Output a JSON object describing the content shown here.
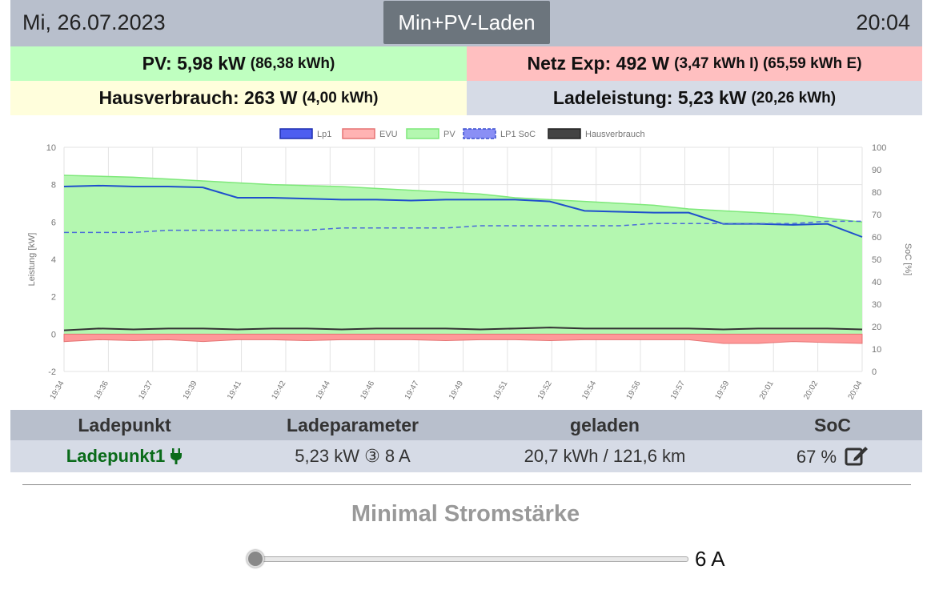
{
  "header": {
    "date": "Mi, 26.07.2023",
    "time": "20:04",
    "mode": "Min+PV-Laden"
  },
  "summary": {
    "pv": "PV: 5,98 kW",
    "pv_energy": "(86,38 kWh)",
    "grid": "Netz Exp: 492 W",
    "grid_energy": "(3,47 kWh I) (65,59 kWh E)",
    "house": "Hausverbrauch: 263 W",
    "house_energy": "(4,00 kWh)",
    "charge": "Ladeleistung: 5,23 kW",
    "charge_energy": "(20,26 kWh)"
  },
  "chart_data": {
    "type": "line",
    "ylabel": "Leistung [kW]",
    "y2label": "SoC [%]",
    "ylim": [
      -2,
      10
    ],
    "y2lim": [
      0,
      100
    ],
    "yticks": [
      "10",
      "8",
      "6",
      "4",
      "2",
      "0",
      "-2"
    ],
    "y2ticks": [
      "100",
      "90",
      "80",
      "70",
      "60",
      "50",
      "40",
      "30",
      "20",
      "10",
      "0"
    ],
    "xticks": [
      "19:34",
      "19:36",
      "19:37",
      "19:39",
      "19:41",
      "19:42",
      "19:44",
      "19:46",
      "19:47",
      "19:49",
      "19:51",
      "19:52",
      "19:54",
      "19:56",
      "19:57",
      "19:59",
      "20:01",
      "20:02",
      "20:04"
    ],
    "legend": [
      "Lp1",
      "EVU",
      "PV",
      "LP1 SoC",
      "Hausverbrauch"
    ],
    "legend_position": "top",
    "colors": {
      "lp1": "#1f4fcc",
      "evu": "#ff9999",
      "pv": "#b4f7b0",
      "pv_line": "#7ee87a",
      "soc": "#4a6bd9",
      "house": "#333333"
    },
    "series": [
      {
        "name": "PV",
        "values": [
          8.5,
          8.45,
          8.4,
          8.3,
          8.2,
          8.1,
          8.0,
          7.95,
          7.9,
          7.8,
          7.7,
          7.6,
          7.5,
          7.3,
          7.2,
          7.1,
          7.0,
          6.9,
          6.7,
          6.6,
          6.5,
          6.4,
          6.2,
          6.0
        ]
      },
      {
        "name": "Lp1",
        "values": [
          7.9,
          7.95,
          7.9,
          7.9,
          7.85,
          7.3,
          7.3,
          7.25,
          7.2,
          7.2,
          7.15,
          7.2,
          7.2,
          7.2,
          7.1,
          6.6,
          6.55,
          6.5,
          6.5,
          5.9,
          5.9,
          5.85,
          5.9,
          5.2
        ]
      },
      {
        "name": "LP1 SoC",
        "values": [
          62,
          62,
          62,
          63,
          63,
          63,
          63,
          63,
          64,
          64,
          64,
          64,
          65,
          65,
          65,
          65,
          65,
          66,
          66,
          66,
          66,
          66,
          67,
          67
        ]
      },
      {
        "name": "Hausverbrauch",
        "values": [
          0.2,
          0.3,
          0.25,
          0.3,
          0.3,
          0.25,
          0.3,
          0.3,
          0.25,
          0.3,
          0.3,
          0.3,
          0.25,
          0.3,
          0.35,
          0.3,
          0.3,
          0.3,
          0.3,
          0.25,
          0.3,
          0.3,
          0.3,
          0.25
        ]
      },
      {
        "name": "EVU",
        "values": [
          -0.4,
          -0.3,
          -0.35,
          -0.3,
          -0.4,
          -0.3,
          -0.3,
          -0.35,
          -0.3,
          -0.3,
          -0.3,
          -0.35,
          -0.3,
          -0.3,
          -0.35,
          -0.3,
          -0.3,
          -0.3,
          -0.3,
          -0.5,
          -0.5,
          -0.4,
          -0.45,
          -0.5
        ]
      }
    ]
  },
  "table": {
    "headers": [
      "Ladepunkt",
      "Ladeparameter",
      "geladen",
      "SoC"
    ],
    "row": {
      "name": "Ladepunkt1",
      "params": "5,23 kW ③ 8 A",
      "charged": "20,7 kWh / 121,6 km",
      "soc": "67 %"
    }
  },
  "slider": {
    "title": "Minimal Stromstärke",
    "value": "6 A",
    "level": 0
  }
}
